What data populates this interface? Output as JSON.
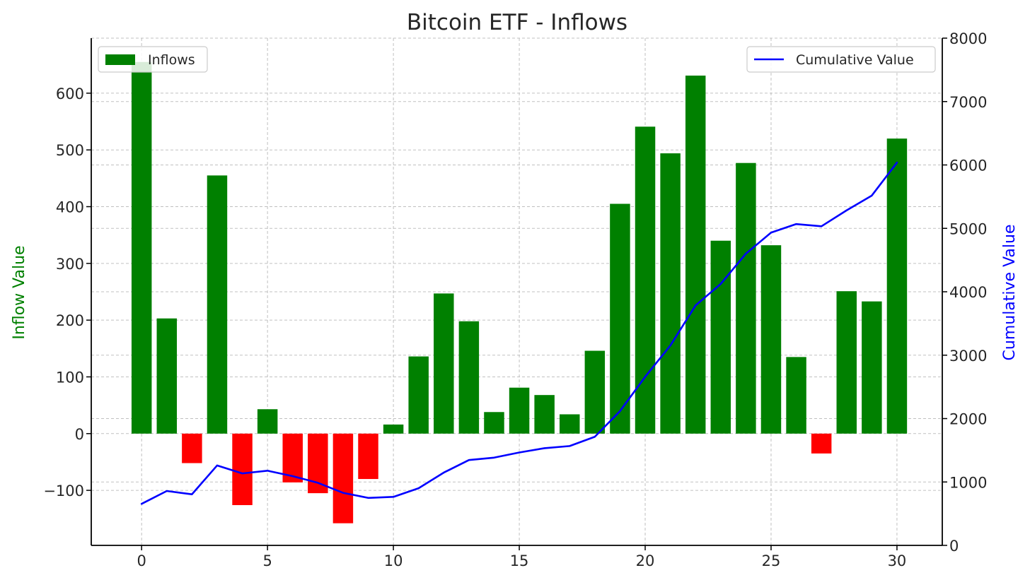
{
  "chart_data": {
    "type": "bar",
    "title": "Bitcoin ETF - Inflows",
    "xlabel": "",
    "ylabel": "Inflow Value",
    "y2label": "Cumulative Value",
    "xlim": [
      -2,
      31.8
    ],
    "ylim": [
      -197,
      697
    ],
    "y2lim": [
      0,
      8000
    ],
    "xticks": [
      0,
      5,
      10,
      15,
      20,
      25,
      30
    ],
    "yticks": [
      -100,
      0,
      100,
      200,
      300,
      400,
      500,
      600
    ],
    "y2ticks": [
      0,
      1000,
      2000,
      3000,
      4000,
      5000,
      6000,
      7000,
      8000
    ],
    "grid": true,
    "legend_bars": "top-left",
    "legend_line": "top-right",
    "x": [
      0,
      1,
      2,
      3,
      4,
      5,
      6,
      7,
      8,
      9,
      10,
      11,
      12,
      13,
      14,
      15,
      16,
      17,
      18,
      19,
      20,
      21,
      22,
      23,
      24,
      25,
      26,
      27,
      28,
      29,
      30
    ],
    "series": [
      {
        "name": "Inflows",
        "type": "bar",
        "axis": "left",
        "color_positive": "#008000",
        "color_negative": "#ff0000",
        "values": [
          655,
          203,
          -52,
          455,
          -126,
          43,
          -86,
          -105,
          -158,
          -80,
          16,
          136,
          247,
          198,
          38,
          81,
          68,
          34,
          146,
          405,
          541,
          494,
          631,
          340,
          477,
          332,
          135,
          -35,
          251,
          233,
          520
        ]
      },
      {
        "name": "Cumulative Value",
        "type": "line",
        "axis": "right",
        "color": "#0000ff",
        "values": [
          655,
          858,
          806,
          1261,
          1135,
          1178,
          1092,
          987,
          829,
          749,
          765,
          901,
          1148,
          1346,
          1384,
          1465,
          1533,
          1567,
          1713,
          2118,
          2659,
          3153,
          3784,
          4124,
          4601,
          4933,
          5068,
          5033,
          5284,
          5517,
          6037
        ]
      }
    ]
  }
}
